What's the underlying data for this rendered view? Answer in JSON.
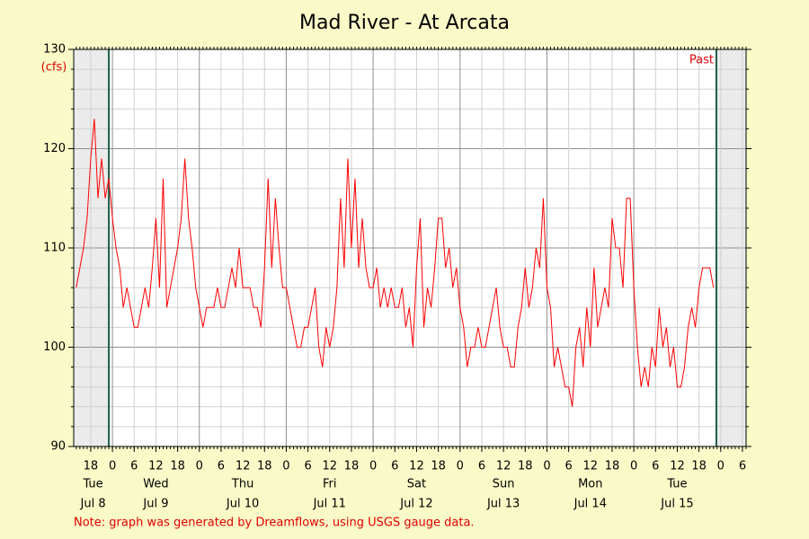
{
  "chart_data": {
    "type": "line",
    "title": "Mad River - At Arcata",
    "y_unit": "(cfs)",
    "past_label": "Past",
    "note": "Note: graph was generated by Dreamflows, using USGS gauge data.",
    "color": "#ff0000",
    "grid": true,
    "xlim": [
      13.3,
      199
    ],
    "ylim": [
      90,
      130
    ],
    "yticks": [
      90,
      100,
      110,
      120,
      130
    ],
    "yminorticks": [
      92,
      94,
      96,
      98,
      102,
      104,
      106,
      108,
      112,
      114,
      116,
      118,
      122,
      124,
      126,
      128
    ],
    "vlines": [
      23,
      190.8
    ],
    "xticks": [
      {
        "value": 18,
        "label": "18"
      },
      {
        "value": 24,
        "label": "0"
      },
      {
        "value": 30,
        "label": "6"
      },
      {
        "value": 36,
        "label": "12"
      },
      {
        "value": 42,
        "label": "18"
      },
      {
        "value": 48,
        "label": "0"
      },
      {
        "value": 54,
        "label": "6"
      },
      {
        "value": 60,
        "label": "12"
      },
      {
        "value": 66,
        "label": "18"
      },
      {
        "value": 72,
        "label": "0"
      },
      {
        "value": 78,
        "label": "6"
      },
      {
        "value": 84,
        "label": "12"
      },
      {
        "value": 90,
        "label": "18"
      },
      {
        "value": 96,
        "label": "0"
      },
      {
        "value": 102,
        "label": "6"
      },
      {
        "value": 108,
        "label": "12"
      },
      {
        "value": 114,
        "label": "18"
      },
      {
        "value": 120,
        "label": "0"
      },
      {
        "value": 126,
        "label": "6"
      },
      {
        "value": 132,
        "label": "12"
      },
      {
        "value": 138,
        "label": "18"
      },
      {
        "value": 144,
        "label": "0"
      },
      {
        "value": 150,
        "label": "6"
      },
      {
        "value": 156,
        "label": "12"
      },
      {
        "value": 162,
        "label": "18"
      },
      {
        "value": 168,
        "label": "0"
      },
      {
        "value": 174,
        "label": "6"
      },
      {
        "value": 180,
        "label": "12"
      },
      {
        "value": 186,
        "label": "18"
      },
      {
        "value": 192,
        "label": "0"
      },
      {
        "value": 198,
        "label": "6"
      }
    ],
    "days": [
      {
        "value": 0,
        "weekday": "Tue",
        "date": "Jul 8"
      },
      {
        "value": 24,
        "weekday": "Wed",
        "date": "Jul 9"
      },
      {
        "value": 48,
        "weekday": "Thu",
        "date": "Jul 10"
      },
      {
        "value": 72,
        "weekday": "Fri",
        "date": "Jul 11"
      },
      {
        "value": 96,
        "weekday": "Sat",
        "date": "Jul 12"
      },
      {
        "value": 120,
        "weekday": "Sun",
        "date": "Jul 13"
      },
      {
        "value": 144,
        "weekday": "Mon",
        "date": "Jul 14"
      },
      {
        "value": 168,
        "weekday": "Tue",
        "date": "Jul 15"
      }
    ],
    "x": [
      14,
      15,
      16,
      17,
      18,
      19,
      20,
      21,
      22,
      23,
      24,
      25,
      26,
      27,
      28,
      29,
      30,
      31,
      32,
      33,
      34,
      35,
      36,
      37,
      38,
      39,
      40,
      41,
      42,
      43,
      44,
      45,
      46,
      47,
      48,
      49,
      50,
      51,
      52,
      53,
      54,
      55,
      56,
      57,
      58,
      59,
      60,
      61,
      62,
      63,
      64,
      65,
      66,
      67,
      68,
      69,
      70,
      71,
      72,
      73,
      74,
      75,
      76,
      77,
      78,
      79,
      80,
      81,
      82,
      83,
      84,
      85,
      86,
      87,
      88,
      89,
      90,
      91,
      92,
      93,
      94,
      95,
      96,
      97,
      98,
      99,
      100,
      101,
      102,
      103,
      104,
      105,
      106,
      107,
      108,
      109,
      110,
      111,
      112,
      113,
      114,
      115,
      116,
      117,
      118,
      119,
      120,
      121,
      122,
      123,
      124,
      125,
      126,
      127,
      128,
      129,
      130,
      131,
      132,
      133,
      134,
      135,
      136,
      137,
      138,
      139,
      140,
      141,
      142,
      143,
      144,
      145,
      146,
      147,
      148,
      149,
      150,
      151,
      152,
      153,
      154,
      155,
      156,
      157,
      158,
      159,
      160,
      161,
      162,
      163,
      164,
      165,
      166,
      167,
      168,
      169,
      170,
      171,
      172,
      173,
      174,
      175,
      176,
      177,
      178,
      179,
      180,
      181,
      182,
      183,
      184,
      185,
      186,
      187,
      188,
      189,
      190
    ],
    "values": [
      106,
      108,
      110,
      113,
      119,
      123,
      115,
      119,
      115,
      117,
      113,
      110,
      108,
      104,
      106,
      104,
      102,
      102,
      104,
      106,
      104,
      108,
      113,
      106,
      117,
      104,
      106,
      108,
      110,
      113,
      119,
      113,
      110,
      106,
      104,
      102,
      104,
      104,
      104,
      106,
      104,
      104,
      106,
      108,
      106,
      110,
      106,
      106,
      106,
      104,
      104,
      102,
      108,
      117,
      108,
      115,
      110,
      106,
      106,
      104,
      102,
      100,
      100,
      102,
      102,
      104,
      106,
      100,
      98,
      102,
      100,
      102,
      106,
      115,
      108,
      119,
      110,
      117,
      108,
      113,
      108,
      106,
      106,
      108,
      104,
      106,
      104,
      106,
      104,
      104,
      106,
      102,
      104,
      100,
      108,
      113,
      102,
      106,
      104,
      108,
      113,
      113,
      108,
      110,
      106,
      108,
      104,
      102,
      98,
      100,
      100,
      102,
      100,
      100,
      102,
      104,
      106,
      102,
      100,
      100,
      98,
      98,
      102,
      104,
      108,
      104,
      106,
      110,
      108,
      115,
      106,
      104,
      98,
      100,
      98,
      96,
      96,
      94,
      100,
      102,
      98,
      104,
      100,
      108,
      102,
      104,
      106,
      104,
      113,
      110,
      110,
      106,
      115,
      115,
      106,
      100,
      96,
      98,
      96,
      100,
      98,
      104,
      100,
      102,
      98,
      100,
      96,
      96,
      98,
      102,
      104,
      102,
      106,
      108,
      108,
      108,
      106
    ]
  }
}
